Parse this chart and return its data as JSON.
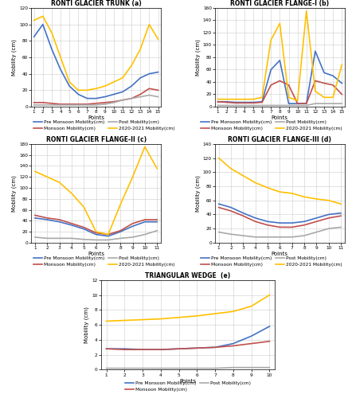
{
  "trunk": {
    "title": "RONTI GLACIER TRUNK (a)",
    "points": [
      1,
      2,
      3,
      4,
      5,
      6,
      7,
      8,
      9,
      10,
      11,
      12,
      13,
      14,
      15
    ],
    "pre_monsoon": [
      85,
      100,
      70,
      45,
      25,
      15,
      10,
      10,
      12,
      15,
      18,
      25,
      35,
      40,
      42
    ],
    "monsoon": [
      5,
      5,
      4,
      3,
      3,
      3,
      3,
      4,
      5,
      6,
      8,
      10,
      15,
      22,
      20
    ],
    "post": [
      2,
      2,
      2,
      2,
      2,
      2,
      2,
      2,
      3,
      5,
      8,
      10,
      12,
      14,
      12
    ],
    "y2021": [
      105,
      110,
      90,
      60,
      30,
      20,
      20,
      22,
      25,
      30,
      35,
      50,
      70,
      100,
      82
    ],
    "ylim": [
      0,
      120
    ],
    "yticks": [
      0,
      20,
      40,
      60,
      80,
      100,
      120
    ]
  },
  "flange1": {
    "title": "RONTI GLACIER FLANGE-I (b)",
    "points": [
      1,
      2,
      3,
      4,
      5,
      6,
      7,
      8,
      9,
      10,
      11,
      12,
      13,
      14,
      15
    ],
    "pre_monsoon": [
      8,
      8,
      7,
      7,
      7,
      8,
      60,
      75,
      5,
      5,
      5,
      90,
      55,
      50,
      38
    ],
    "monsoon": [
      8,
      7,
      6,
      6,
      6,
      7,
      35,
      42,
      35,
      5,
      5,
      42,
      38,
      35,
      20
    ],
    "post": [
      2,
      2,
      2,
      2,
      2,
      2,
      2,
      2,
      2,
      2,
      2,
      5,
      5,
      5,
      5
    ],
    "y2021": [
      12,
      12,
      12,
      12,
      12,
      15,
      108,
      135,
      15,
      10,
      155,
      25,
      15,
      15,
      68
    ],
    "ylim": [
      0,
      160
    ],
    "yticks": [
      0,
      20,
      40,
      60,
      80,
      100,
      120,
      140,
      160
    ]
  },
  "flange2": {
    "title": "RONTI GLACIER FLANGE-II (c)",
    "points": [
      1,
      2,
      3,
      4,
      5,
      6,
      7,
      8,
      9,
      10,
      11
    ],
    "pre_monsoon": [
      45,
      42,
      38,
      32,
      25,
      15,
      12,
      20,
      30,
      38,
      38
    ],
    "monsoon": [
      50,
      45,
      42,
      35,
      28,
      18,
      15,
      22,
      35,
      42,
      42
    ],
    "post": [
      10,
      8,
      8,
      8,
      6,
      5,
      5,
      8,
      10,
      15,
      22
    ],
    "y2021": [
      130,
      120,
      110,
      90,
      65,
      20,
      15,
      70,
      120,
      175,
      135
    ],
    "ylim": [
      0,
      180
    ],
    "yticks": [
      0,
      20,
      40,
      60,
      80,
      100,
      120,
      140,
      160,
      180
    ]
  },
  "flange3": {
    "title": "RONTI GLACIER FLANGE-III (d)",
    "points": [
      1,
      2,
      3,
      4,
      5,
      6,
      7,
      8,
      9,
      10,
      11
    ],
    "pre_monsoon": [
      55,
      50,
      42,
      35,
      30,
      28,
      28,
      30,
      35,
      40,
      42
    ],
    "monsoon": [
      50,
      45,
      38,
      30,
      25,
      22,
      22,
      25,
      30,
      35,
      38
    ],
    "post": [
      15,
      12,
      10,
      8,
      8,
      8,
      8,
      10,
      15,
      20,
      22
    ],
    "y2021": [
      120,
      105,
      95,
      85,
      78,
      72,
      70,
      65,
      62,
      60,
      55
    ],
    "ylim": [
      0,
      140
    ],
    "yticks": [
      0,
      20,
      40,
      60,
      80,
      100,
      120,
      140
    ]
  },
  "wedge": {
    "title": "TRIANGULAR WEDGE  (e)",
    "points": [
      1,
      2,
      3,
      4,
      5,
      6,
      7,
      8,
      9,
      10
    ],
    "pre_monsoon": [
      2.8,
      2.8,
      2.7,
      2.7,
      2.8,
      2.9,
      3.0,
      3.5,
      4.5,
      5.8
    ],
    "monsoon": [
      2.8,
      2.7,
      2.7,
      2.7,
      2.8,
      2.9,
      3.0,
      3.2,
      3.5,
      3.8
    ],
    "post": [
      0.2,
      0.2,
      0.2,
      0.2,
      0.2,
      0.2,
      0.2,
      0.3,
      0.3,
      0.3
    ],
    "y2021": [
      6.5,
      6.6,
      6.7,
      6.8,
      7.0,
      7.2,
      7.5,
      7.8,
      8.5,
      10.0
    ],
    "ylim": [
      0,
      12
    ],
    "yticks": [
      0,
      2,
      4,
      6,
      8,
      10,
      12
    ]
  },
  "colors": {
    "pre_monsoon": "#4472C4",
    "monsoon": "#C0504D",
    "post": "#A9A9A9",
    "y2021": "#FFC000"
  },
  "legend_labels": {
    "pre_monsoon": "Pre Monsoon Mobility(cm)",
    "monsoon": "Monsoon Mobility(cm)",
    "post": "Post Mobility(cm)",
    "y2021": "2020-2021 Mobility(cm)"
  },
  "figsize": [
    4.37,
    5.0
  ],
  "dpi": 100
}
